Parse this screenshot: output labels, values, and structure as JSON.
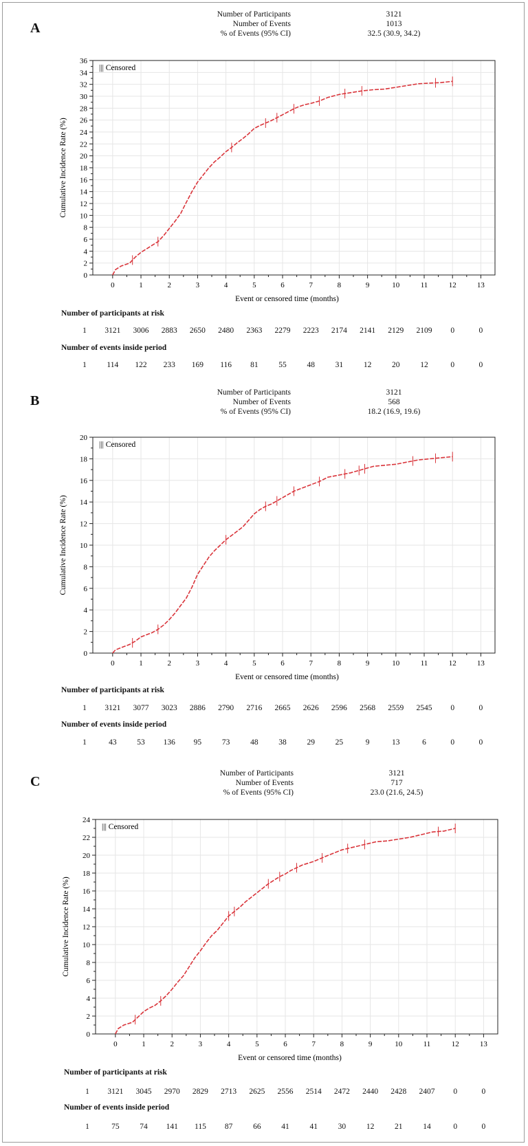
{
  "colors": {
    "curve": "#d9343a",
    "censor": "#d9343a",
    "grid": "#e6e6e6",
    "axis": "#222222"
  },
  "panels": [
    {
      "letter": "A",
      "stats": [
        {
          "label": "Number of Participants",
          "value": "3121"
        },
        {
          "label": "Number of Events",
          "value": "1013"
        },
        {
          "label": "% of Events (95% CI)",
          "value": "32.5 (30.9, 34.2)"
        }
      ],
      "risk_header": "Number of participants at risk",
      "risk_row_label": "1",
      "risk_values": [
        "3121",
        "3006",
        "2883",
        "2650",
        "2480",
        "2363",
        "2279",
        "2223",
        "2174",
        "2141",
        "2129",
        "2109",
        "0",
        "0"
      ],
      "events_header": "Number of events inside period",
      "events_row_label": "1",
      "events_values": [
        "114",
        "122",
        "233",
        "169",
        "116",
        "81",
        "55",
        "48",
        "31",
        "12",
        "20",
        "12",
        "0",
        "0"
      ],
      "chart_data": {
        "type": "line",
        "xlabel": "Event or censored time (months)",
        "ylabel": "Cumulative Incidence Rate (%)",
        "legend": "||| Censored",
        "legend_position": "top-left",
        "grid": true,
        "xlim": [
          -0.7,
          13.5
        ],
        "ylim": [
          0,
          36
        ],
        "xticks": [
          0,
          1,
          2,
          3,
          4,
          5,
          6,
          7,
          8,
          9,
          10,
          11,
          12,
          13
        ],
        "yticks": [
          0,
          2,
          4,
          6,
          8,
          10,
          12,
          14,
          16,
          18,
          20,
          22,
          24,
          26,
          28,
          30,
          32,
          34,
          36
        ],
        "x": [
          0,
          0.1,
          0.3,
          0.6,
          0.8,
          1.0,
          1.2,
          1.4,
          1.6,
          1.8,
          2.0,
          2.2,
          2.4,
          2.6,
          2.8,
          3.0,
          3.2,
          3.4,
          3.6,
          3.8,
          4.0,
          4.2,
          4.4,
          4.6,
          4.8,
          5.0,
          5.2,
          5.4,
          5.6,
          5.8,
          6.0,
          6.2,
          6.4,
          6.6,
          6.8,
          7.0,
          7.3,
          7.6,
          8.0,
          8.4,
          8.8,
          9.2,
          9.6,
          10.0,
          10.4,
          10.8,
          11.2,
          11.6,
          12.0
        ],
        "y": [
          0,
          0.9,
          1.5,
          2.0,
          3.0,
          3.8,
          4.4,
          5.0,
          5.6,
          6.6,
          7.8,
          9.0,
          10.3,
          12.2,
          14.0,
          15.6,
          16.8,
          18.0,
          19.0,
          19.8,
          20.7,
          21.4,
          22.2,
          22.9,
          23.7,
          24.6,
          25.1,
          25.5,
          25.9,
          26.4,
          26.9,
          27.4,
          27.9,
          28.3,
          28.6,
          28.8,
          29.2,
          29.8,
          30.3,
          30.6,
          30.9,
          31.1,
          31.2,
          31.5,
          31.8,
          32.1,
          32.2,
          32.3,
          32.5
        ],
        "censored_x": [
          0.7,
          1.6,
          4.2,
          5.4,
          5.8,
          6.4,
          7.3,
          8.2,
          8.8,
          11.4,
          12.0
        ]
      }
    },
    {
      "letter": "B",
      "stats": [
        {
          "label": "Number of Participants",
          "value": "3121"
        },
        {
          "label": "Number of Events",
          "value": "568"
        },
        {
          "label": "% of Events (95% CI)",
          "value": "18.2 (16.9, 19.6)"
        }
      ],
      "risk_header": "Number of participants at risk",
      "risk_row_label": "1",
      "risk_values": [
        "3121",
        "3077",
        "3023",
        "2886",
        "2790",
        "2716",
        "2665",
        "2626",
        "2596",
        "2568",
        "2559",
        "2545",
        "0",
        "0"
      ],
      "events_header": "Number of events inside period",
      "events_row_label": "1",
      "events_values": [
        "43",
        "53",
        "136",
        "95",
        "73",
        "48",
        "38",
        "29",
        "25",
        "9",
        "13",
        "6",
        "0",
        "0"
      ],
      "chart_data": {
        "type": "line",
        "xlabel": "Event or censored time (months)",
        "ylabel": "Cumulative Incidence Rate (%)",
        "legend": "||| Censored",
        "legend_position": "top-left",
        "grid": true,
        "xlim": [
          -0.7,
          13.5
        ],
        "ylim": [
          0,
          20
        ],
        "xticks": [
          0,
          1,
          2,
          3,
          4,
          5,
          6,
          7,
          8,
          9,
          10,
          11,
          12,
          13
        ],
        "yticks": [
          0,
          2,
          4,
          6,
          8,
          10,
          12,
          14,
          16,
          18,
          20
        ],
        "x": [
          0,
          0.1,
          0.3,
          0.6,
          0.8,
          1.0,
          1.2,
          1.4,
          1.6,
          1.8,
          2.0,
          2.2,
          2.4,
          2.6,
          2.8,
          3.0,
          3.2,
          3.4,
          3.6,
          3.8,
          4.0,
          4.2,
          4.4,
          4.6,
          4.8,
          5.0,
          5.2,
          5.4,
          5.6,
          5.8,
          6.0,
          6.2,
          6.4,
          6.6,
          6.8,
          7.0,
          7.3,
          7.6,
          8.0,
          8.4,
          8.8,
          9.2,
          9.6,
          10.0,
          10.4,
          10.8,
          11.2,
          11.6,
          12.0
        ],
        "y": [
          0,
          0.3,
          0.5,
          0.8,
          1.1,
          1.5,
          1.7,
          1.9,
          2.2,
          2.6,
          3.1,
          3.7,
          4.4,
          5.1,
          6.1,
          7.3,
          8.1,
          8.9,
          9.5,
          10.0,
          10.5,
          10.9,
          11.3,
          11.7,
          12.3,
          12.9,
          13.3,
          13.6,
          13.8,
          14.1,
          14.4,
          14.7,
          15.0,
          15.2,
          15.4,
          15.6,
          15.9,
          16.3,
          16.5,
          16.7,
          17.0,
          17.3,
          17.4,
          17.5,
          17.7,
          17.9,
          18.0,
          18.1,
          18.2
        ],
        "censored_x": [
          0.7,
          1.6,
          4.0,
          5.4,
          5.8,
          6.4,
          7.3,
          8.2,
          8.7,
          8.9,
          10.6,
          11.4,
          12.0
        ]
      }
    },
    {
      "letter": "C",
      "stats": [
        {
          "label": "Number of Participants",
          "value": "3121"
        },
        {
          "label": "Number of Events",
          "value": "717"
        },
        {
          "label": "% of Events (95% CI)",
          "value": "23.0 (21.6, 24.5)"
        }
      ],
      "risk_header": "Number of participants at risk",
      "risk_row_label": "1",
      "risk_values": [
        "3121",
        "3045",
        "2970",
        "2829",
        "2713",
        "2625",
        "2556",
        "2514",
        "2472",
        "2440",
        "2428",
        "2407",
        "0",
        "0"
      ],
      "events_header": "Number of events inside period",
      "events_row_label": "1",
      "events_values": [
        "75",
        "74",
        "141",
        "115",
        "87",
        "66",
        "41",
        "41",
        "30",
        "12",
        "21",
        "14",
        "0",
        "0"
      ],
      "chart_data": {
        "type": "line",
        "xlabel": "Event or censored time (months)",
        "ylabel": "Cumulative Incidence Rate (%)",
        "legend": "||| Censored",
        "legend_position": "top-left",
        "grid": true,
        "xlim": [
          -0.7,
          13.5
        ],
        "ylim": [
          0,
          24
        ],
        "xticks": [
          0,
          1,
          2,
          3,
          4,
          5,
          6,
          7,
          8,
          9,
          10,
          11,
          12,
          13
        ],
        "yticks": [
          0,
          2,
          4,
          6,
          8,
          10,
          12,
          14,
          16,
          18,
          20,
          22,
          24
        ],
        "x": [
          0,
          0.1,
          0.3,
          0.6,
          0.8,
          1.0,
          1.2,
          1.4,
          1.6,
          1.8,
          2.0,
          2.2,
          2.4,
          2.6,
          2.8,
          3.0,
          3.2,
          3.4,
          3.6,
          3.8,
          4.0,
          4.2,
          4.4,
          4.6,
          4.8,
          5.0,
          5.2,
          5.4,
          5.6,
          5.8,
          6.0,
          6.2,
          6.4,
          6.6,
          6.8,
          7.0,
          7.3,
          7.6,
          8.0,
          8.4,
          8.8,
          9.2,
          9.6,
          10.0,
          10.4,
          10.8,
          11.2,
          11.6,
          12.0
        ],
        "y": [
          0,
          0.6,
          1.0,
          1.3,
          1.9,
          2.5,
          2.9,
          3.2,
          3.7,
          4.3,
          5.0,
          5.8,
          6.5,
          7.5,
          8.5,
          9.3,
          10.2,
          11.0,
          11.6,
          12.4,
          13.2,
          13.7,
          14.2,
          14.8,
          15.3,
          15.8,
          16.3,
          16.8,
          17.2,
          17.6,
          17.9,
          18.3,
          18.6,
          18.9,
          19.1,
          19.3,
          19.7,
          20.1,
          20.6,
          20.9,
          21.2,
          21.5,
          21.6,
          21.8,
          22.0,
          22.3,
          22.6,
          22.7,
          23.0
        ],
        "censored_x": [
          0.7,
          1.6,
          4.0,
          4.2,
          5.4,
          5.8,
          6.4,
          7.3,
          8.2,
          8.8,
          11.4,
          12.0
        ]
      }
    }
  ]
}
